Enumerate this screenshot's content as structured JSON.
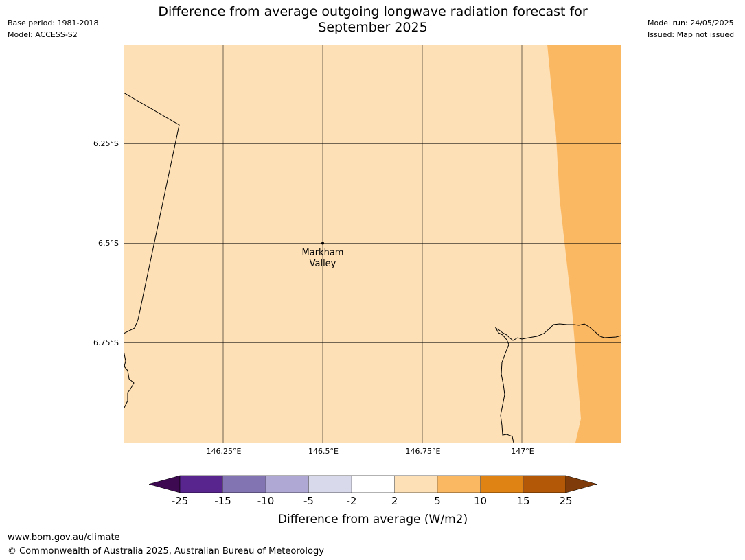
{
  "header": {
    "title_line1": "Difference from average outgoing longwave radiation forecast for",
    "title_line2": "September 2025",
    "base_period": "Base period: 1981-2018",
    "model": "Model: ACCESS-S2",
    "model_run": "Model run: 24/05/2025",
    "issued": "Issued: Map not issued"
  },
  "map": {
    "lat_ticks": [
      "6.25°S",
      "6.5°S",
      "6.75°S"
    ],
    "lon_ticks": [
      "146.25°E",
      "146.5°E",
      "146.75°E",
      "147°E"
    ],
    "place": {
      "name_line1": "Markham",
      "name_line2": "Valley"
    },
    "fill_colors": {
      "2 to 5": "#fde0b6",
      "5 to 10": "#fbb863"
    }
  },
  "colorbar": {
    "label": "Difference from average (W/m2)",
    "ticks": [
      "-25",
      "-15",
      "-10",
      "-5",
      "-2",
      "2",
      "5",
      "10",
      "15",
      "25"
    ],
    "colors": [
      "#3d0a52",
      "#58258f",
      "#8273b2",
      "#b0a8d4",
      "#d9d9ec",
      "#ffffff",
      "#fde0b6",
      "#fbb863",
      "#e08315",
      "#b25807",
      "#7f3b09"
    ]
  },
  "footer": {
    "website": "www.bom.gov.au/climate",
    "copyright": "© Commonwealth of Australia 2025, Australian Bureau of Meteorology"
  }
}
